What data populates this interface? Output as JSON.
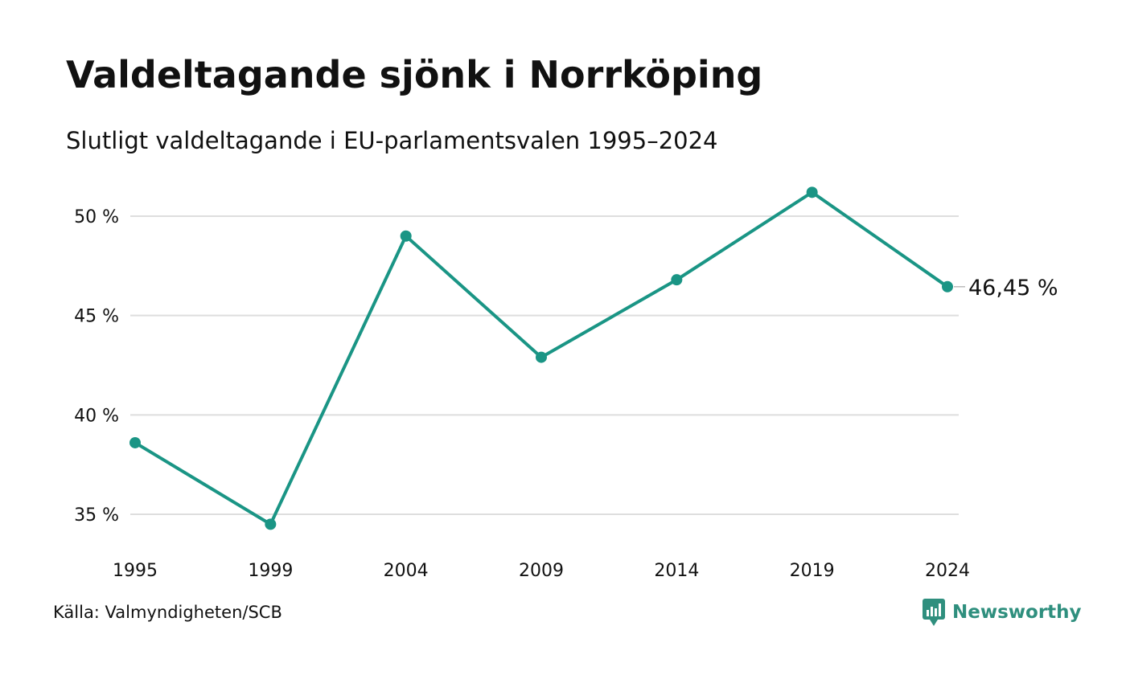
{
  "chart_data": {
    "type": "line",
    "title": "Valdeltagande sjönk i Norrköping",
    "subtitle": "Slutligt valdeltagande i EU-parlamentsvalen 1995–2024",
    "x": [
      "1995",
      "1999",
      "2004",
      "2009",
      "2014",
      "2019",
      "2024"
    ],
    "series": [
      {
        "values": [
          38.6,
          34.5,
          49.0,
          42.9,
          46.8,
          51.2,
          46.45
        ]
      }
    ],
    "ylim": [
      33,
      52
    ],
    "yticks": [
      {
        "value": 35,
        "label": "35 %"
      },
      {
        "value": 40,
        "label": "40 %"
      },
      {
        "value": 45,
        "label": "45 %"
      },
      {
        "value": 50,
        "label": "50 %"
      }
    ],
    "end_label": "46,45 %",
    "grid": true,
    "line_color": "#1a9585",
    "grid_color": "#dedede"
  },
  "source": "Källa: Valmyndigheten/SCB",
  "brand": {
    "name": "Newsworthy",
    "color": "#2f8f7e",
    "icon": "newsworthy-logo-icon"
  }
}
